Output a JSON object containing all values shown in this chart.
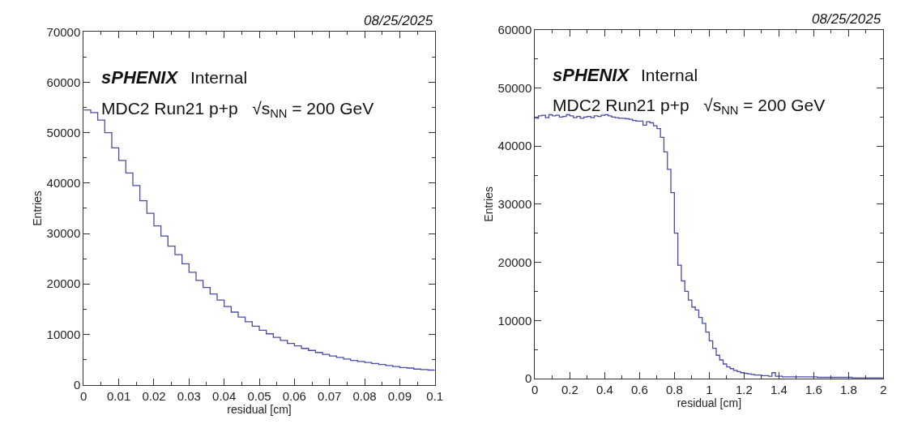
{
  "chart_data": [
    {
      "type": "histogram",
      "xlabel": "residual [cm]",
      "ylabel": "Entries",
      "color": "#4b4ba8",
      "annotations": [
        "sPHENIX",
        "Internal",
        "MDC2 Run21 p+p   √s$_{NN}$ = 200 GeV",
        "08/25/2025"
      ],
      "bins": [
        0,
        0.002,
        0.004,
        0.006,
        0.008,
        0.01,
        0.012,
        0.014,
        0.016,
        0.018,
        0.02,
        0.022,
        0.024,
        0.026,
        0.028,
        0.03,
        0.032,
        0.034,
        0.036,
        0.038,
        0.04,
        0.042,
        0.044,
        0.046,
        0.048,
        0.05,
        0.052,
        0.054,
        0.056,
        0.058,
        0.06,
        0.062,
        0.064,
        0.066,
        0.068,
        0.07,
        0.072,
        0.074,
        0.076,
        0.078,
        0.08,
        0.082,
        0.084,
        0.086,
        0.088,
        0.09,
        0.092,
        0.094,
        0.096,
        0.098,
        0.1
      ],
      "values": [
        54500,
        54000,
        52500,
        50000,
        47000,
        44500,
        42000,
        39500,
        36500,
        34000,
        31500,
        29500,
        27500,
        25800,
        24000,
        22300,
        20700,
        19300,
        18000,
        16800,
        15500,
        14400,
        13400,
        12500,
        11600,
        10800,
        10100,
        9400,
        8800,
        8200,
        7700,
        7200,
        6800,
        6400,
        6000,
        5700,
        5400,
        5100,
        4800,
        4600,
        4400,
        4200,
        4000,
        3800,
        3600,
        3400,
        3300,
        3100,
        3000,
        2900
      ],
      "xlim": [
        0,
        0.1
      ],
      "xticks": [
        0,
        0.01,
        0.02,
        0.03,
        0.04,
        0.05,
        0.06,
        0.07,
        0.08,
        0.09,
        0.1
      ],
      "ylim": [
        0,
        70000
      ],
      "yticks": [
        0,
        10000,
        20000,
        30000,
        40000,
        50000,
        60000,
        70000
      ]
    },
    {
      "type": "histogram",
      "xlabel": "residual [cm]",
      "ylabel": "Entries",
      "color": "#4b4ba8",
      "annotations": [
        "sPHENIX",
        "Internal",
        "MDC2 Run21 p+p   √s$_{NN}$ = 200 GeV",
        "08/25/2025"
      ],
      "bins": [
        0,
        0.02,
        0.04,
        0.06,
        0.08,
        0.1,
        0.12,
        0.14,
        0.16,
        0.18,
        0.2,
        0.22,
        0.24,
        0.26,
        0.28,
        0.3,
        0.32,
        0.34,
        0.36,
        0.38,
        0.4,
        0.42,
        0.44,
        0.46,
        0.48,
        0.5,
        0.52,
        0.54,
        0.56,
        0.58,
        0.6,
        0.62,
        0.64,
        0.66,
        0.68,
        0.7,
        0.72,
        0.74,
        0.76,
        0.78,
        0.8,
        0.82,
        0.84,
        0.86,
        0.88,
        0.9,
        0.92,
        0.94,
        0.96,
        0.98,
        1,
        1.02,
        1.04,
        1.06,
        1.08,
        1.1,
        1.12,
        1.14,
        1.16,
        1.18,
        1.2,
        1.22,
        1.24,
        1.26,
        1.28,
        1.3,
        1.32,
        1.34,
        1.36,
        1.38,
        1.4,
        1.42,
        1.44,
        1.46,
        1.48,
        1.5,
        1.52,
        1.54,
        1.56,
        1.58,
        1.6,
        1.62,
        1.64,
        1.66,
        1.68,
        1.7,
        1.72,
        1.74,
        1.76,
        1.78,
        1.8,
        1.82,
        1.84,
        1.86,
        1.88,
        1.9,
        1.92,
        1.94,
        1.96,
        1.98,
        2
      ],
      "values": [
        44800,
        45200,
        45300,
        44900,
        45400,
        45200,
        45300,
        45000,
        45100,
        45400,
        45200,
        44900,
        45100,
        44800,
        45000,
        45100,
        44900,
        45200,
        45100,
        45300,
        45400,
        45200,
        45000,
        44900,
        44800,
        44800,
        44700,
        44600,
        44400,
        44300,
        44300,
        43600,
        44200,
        44000,
        43500,
        43000,
        41500,
        39000,
        36000,
        32000,
        25000,
        19500,
        16800,
        15000,
        13500,
        12300,
        11800,
        10500,
        9500,
        8000,
        6500,
        5200,
        4000,
        3200,
        2500,
        2000,
        1700,
        1400,
        1200,
        1000,
        900,
        800,
        700,
        600,
        600,
        500,
        500,
        400,
        1000,
        400,
        400,
        300,
        300,
        300,
        300,
        300,
        300,
        300,
        300,
        300,
        300,
        200,
        200,
        200,
        200,
        200,
        200,
        200,
        200,
        200,
        200,
        100,
        100,
        100,
        100,
        100,
        100,
        100,
        100,
        100
      ],
      "xlim": [
        0,
        2
      ],
      "xticks": [
        0,
        0.2,
        0.4,
        0.6,
        0.8,
        1,
        1.2,
        1.4,
        1.6,
        1.8,
        2
      ],
      "ylim": [
        0,
        60000
      ],
      "yticks": [
        0,
        10000,
        20000,
        30000,
        40000,
        50000,
        60000
      ]
    }
  ]
}
